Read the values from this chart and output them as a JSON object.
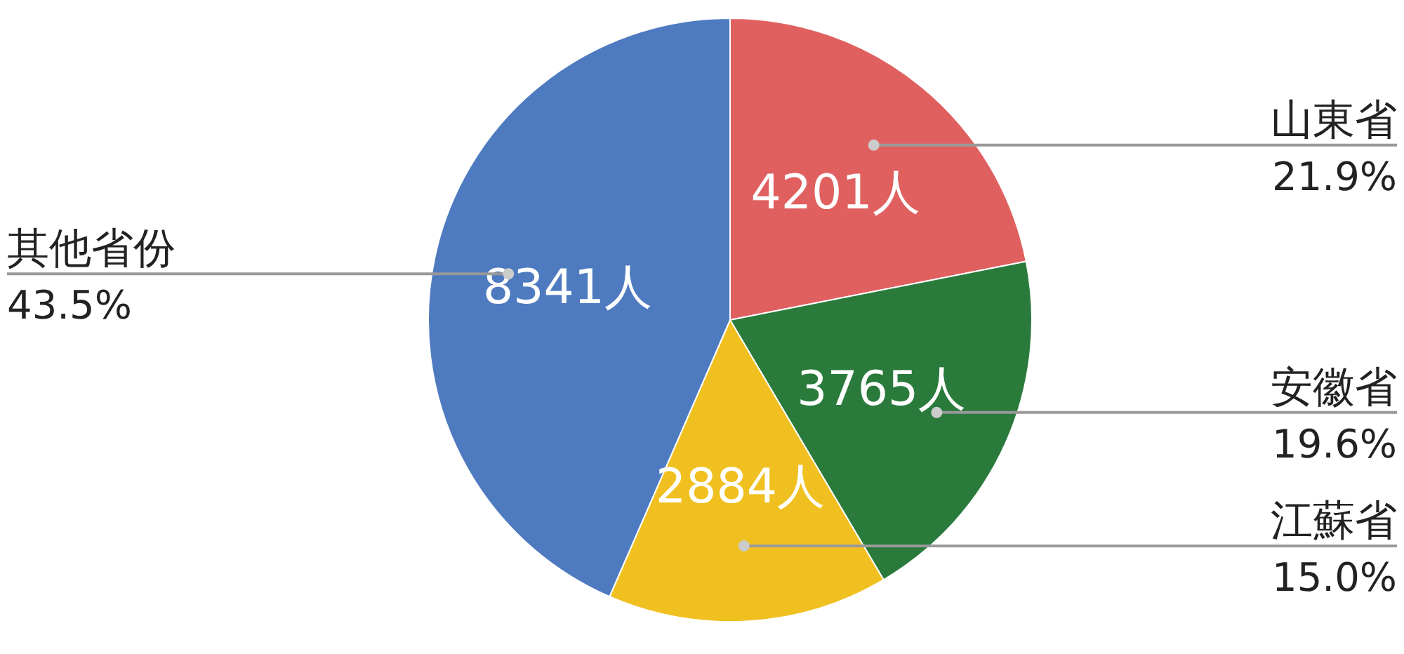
{
  "chart_data": {
    "type": "pie",
    "categories": [
      "山東省",
      "安徽省",
      "江蘇省",
      "其他省份"
    ],
    "values": [
      4201,
      3765,
      2884,
      8341
    ],
    "colors": [
      "#e06060",
      "#2a7a3c",
      "#f0c020",
      "#4e7bc0"
    ],
    "value_labels": [
      "4201人",
      "3765人",
      "2884人",
      "8341人"
    ],
    "annotations": [
      "21.9%",
      "19.6%",
      "15.0%",
      "43.5%"
    ]
  }
}
